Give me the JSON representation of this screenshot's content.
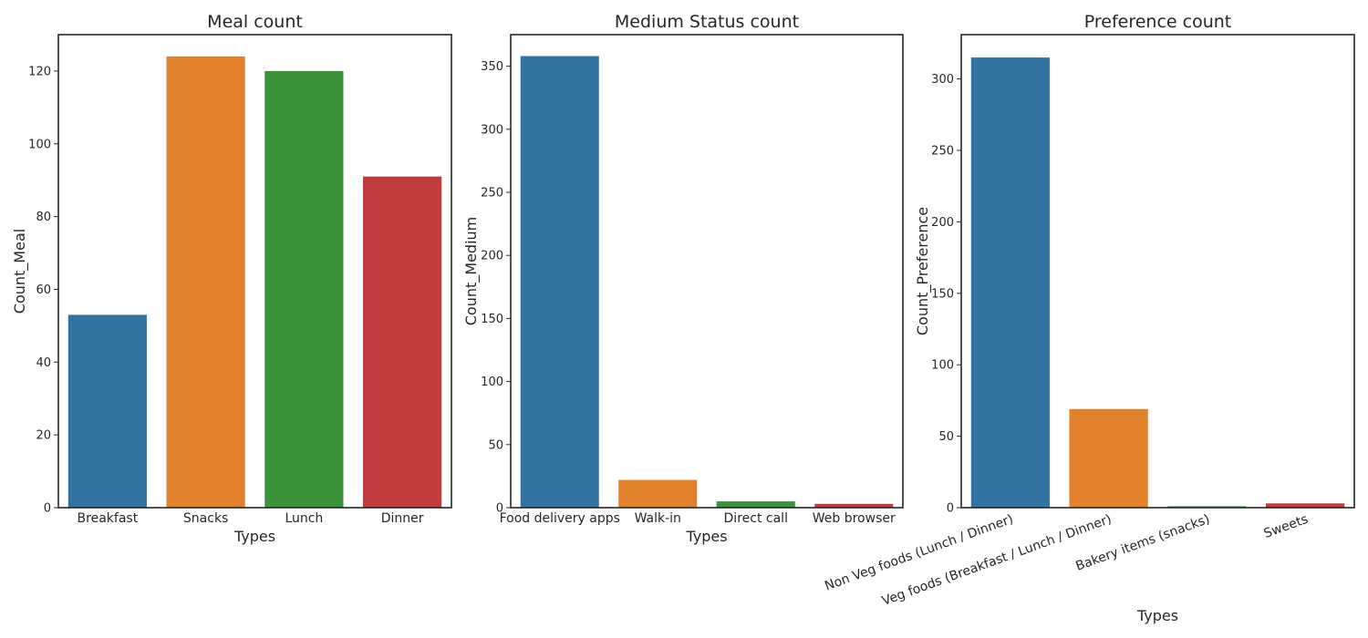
{
  "chart_data": [
    {
      "type": "bar",
      "title": "Meal count",
      "xlabel": "Types",
      "ylabel": "Count_Meal",
      "categories": [
        "Breakfast",
        "Snacks",
        "Lunch",
        "Dinner"
      ],
      "values": [
        53,
        124,
        120,
        91
      ],
      "colors": [
        "#3274a1",
        "#e1812c",
        "#3a923a",
        "#c03d3e"
      ],
      "ylim": [
        0,
        130
      ],
      "yticks": [
        0,
        20,
        40,
        60,
        80,
        100,
        120
      ],
      "grid": false,
      "legend": "none"
    },
    {
      "type": "bar",
      "title": "Medium Status count",
      "xlabel": "Types",
      "ylabel": "Count_Medium",
      "categories": [
        "Food delivery apps",
        "Walk-in",
        "Direct call",
        "Web browser"
      ],
      "values": [
        358,
        22,
        5,
        3
      ],
      "colors": [
        "#3274a1",
        "#e1812c",
        "#3a923a",
        "#c03d3e"
      ],
      "ylim": [
        0,
        375
      ],
      "yticks": [
        0,
        50,
        100,
        150,
        200,
        250,
        300,
        350
      ],
      "grid": false,
      "legend": "none"
    },
    {
      "type": "bar",
      "title": "Preference count",
      "xlabel": "Types",
      "ylabel": "Count_Preference",
      "categories": [
        "Non Veg foods (Lunch / Dinner)",
        "Veg foods (Breakfast / Lunch / Dinner)",
        "Bakery items (snacks)",
        "Sweets"
      ],
      "values": [
        315,
        69,
        1,
        3
      ],
      "colors": [
        "#3274a1",
        "#e1812c",
        "#3a923a",
        "#c03d3e"
      ],
      "ylim": [
        0,
        331
      ],
      "yticks": [
        0,
        50,
        100,
        150,
        200,
        250,
        300
      ],
      "rotated_labels": true,
      "grid": false,
      "legend": "none"
    }
  ]
}
